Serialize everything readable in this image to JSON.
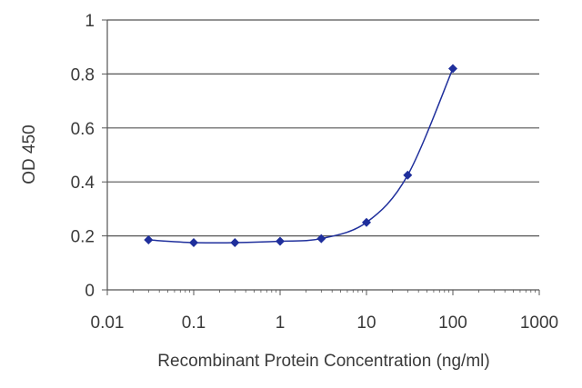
{
  "chart_data": {
    "type": "line",
    "title": "",
    "xlabel": "Recombinant Protein Concentration (ng/ml)",
    "ylabel": "OD 450",
    "x_scale": "log",
    "xlim": [
      0.01,
      1000
    ],
    "ylim": [
      0,
      1
    ],
    "x_ticks": [
      "0.01",
      "0.1",
      "1",
      "10",
      "100",
      "1000"
    ],
    "y_ticks": [
      "0",
      "0.2",
      "0.4",
      "0.6",
      "0.8",
      "1"
    ],
    "grid": "horizontal",
    "series": [
      {
        "x": [
          0.03,
          0.1,
          0.3,
          1,
          3,
          10,
          30,
          100
        ],
        "y": [
          0.185,
          0.175,
          0.175,
          0.18,
          0.19,
          0.25,
          0.425,
          0.82
        ]
      }
    ],
    "colors": {
      "series": "#1f2f9c",
      "grid": "#555555",
      "axis": "#555555"
    }
  }
}
